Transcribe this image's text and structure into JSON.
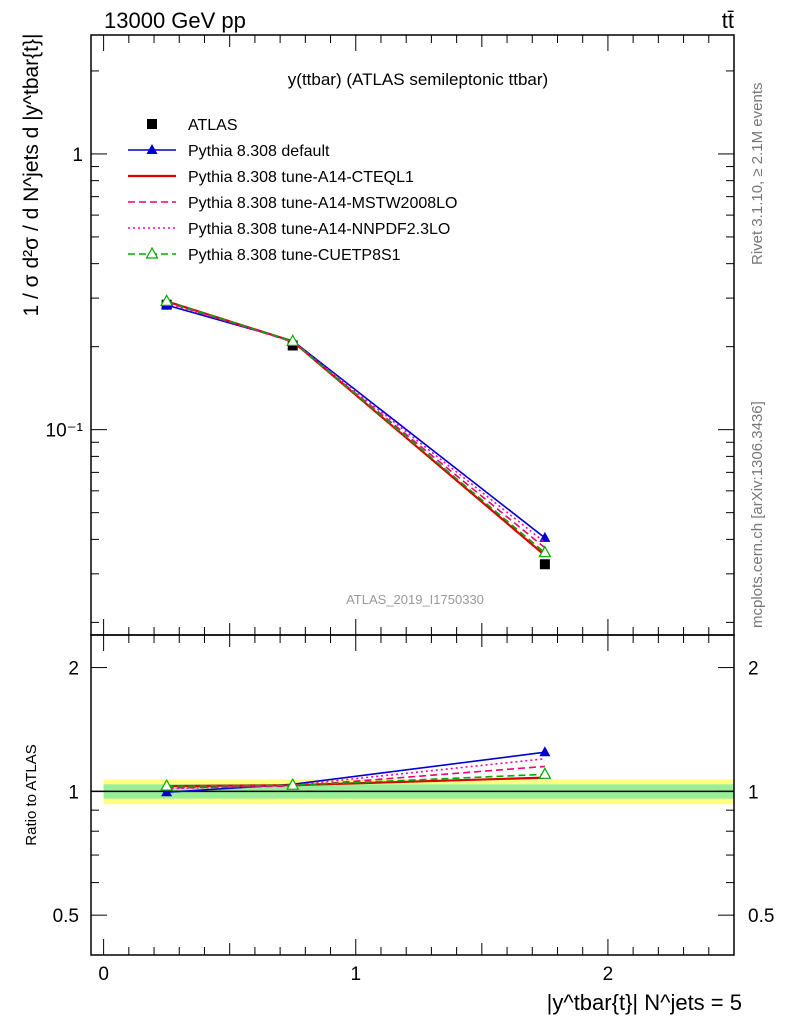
{
  "header": {
    "left": "13000 GeV pp",
    "right": "tt̄"
  },
  "side_text": {
    "rivet": "Rivet 3.1.10, ≥ 2.1M events",
    "mcplots": "mcplots.cern.ch [arXiv:1306.3436]"
  },
  "chart_data": [
    {
      "type": "line",
      "title": "y(ttbar) (ATLAS semileptonic ttbar)",
      "analysis_label": "ATLAS_2019_I1750330",
      "ylabel": "1 / σ d²σ / d N^jets d |y^tbar{t}|",
      "ylog": true,
      "ylim": [
        0.018,
        2.7
      ],
      "xlim": [
        -0.05,
        2.5
      ],
      "x": [
        0.25,
        0.75,
        1.75
      ],
      "ytick_labels": [
        "10⁻¹",
        "1"
      ],
      "ytick_values": [
        0.1,
        1
      ],
      "legend_position": "top-left",
      "series": [
        {
          "name": "ATLAS",
          "values": [
            0.284,
            0.202,
            0.0325
          ],
          "color": "#000000",
          "marker": "square",
          "dash": "none"
        },
        {
          "name": "Pythia 8.308 default",
          "values": [
            0.283,
            0.21,
            0.0405
          ],
          "color": "#0000cc",
          "marker": "triangle",
          "dash": "solid"
        },
        {
          "name": "Pythia 8.308 tune-A14-CTEQL1",
          "values": [
            0.292,
            0.209,
            0.035
          ],
          "color": "#dd0000",
          "marker": "none",
          "dash": "solid"
        },
        {
          "name": "Pythia 8.308 tune-A14-MSTW2008LO",
          "values": [
            0.29,
            0.208,
            0.0373
          ],
          "color": "#ee0077",
          "marker": "none",
          "dash": "dashed"
        },
        {
          "name": "Pythia 8.308 tune-A14-NNPDF2.3LO",
          "values": [
            0.288,
            0.209,
            0.039
          ],
          "color": "#ee00cc",
          "marker": "none",
          "dash": "dotted"
        },
        {
          "name": "Pythia 8.308 tune-CUETP8S1",
          "values": [
            0.292,
            0.209,
            0.0358
          ],
          "color": "#00aa00",
          "marker": "open-triangle",
          "dash": "dashed"
        }
      ]
    },
    {
      "type": "line",
      "ylabel": "Ratio to ATLAS",
      "xlabel": "|y^tbar{t}| N^jets = 5",
      "ylog": true,
      "ylim": [
        0.4,
        2.4
      ],
      "xlim": [
        -0.05,
        2.5
      ],
      "x": [
        0.25,
        0.75,
        1.75
      ],
      "ytick_labels": [
        "0.5",
        "1",
        "2"
      ],
      "ytick_values": [
        0.5,
        1,
        2
      ],
      "xtick_labels": [
        "0",
        "1",
        "2"
      ],
      "xtick_values": [
        0,
        1,
        2
      ],
      "band_inner": [
        0.96,
        1.04
      ],
      "band_outer": [
        0.93,
        1.07
      ],
      "band_inner_color": "#99ee99",
      "band_outer_color": "#ffff88",
      "series": [
        {
          "name": "Pythia 8.308 default",
          "values": [
            0.995,
            1.04,
            1.245
          ],
          "color": "#0000cc",
          "marker": "triangle",
          "dash": "solid"
        },
        {
          "name": "Pythia 8.308 tune-A14-CTEQL1",
          "values": [
            1.03,
            1.035,
            1.08
          ],
          "color": "#dd0000",
          "marker": "none",
          "dash": "solid"
        },
        {
          "name": "Pythia 8.308 tune-A14-MSTW2008LO",
          "values": [
            1.02,
            1.03,
            1.15
          ],
          "color": "#ee0077",
          "marker": "none",
          "dash": "dashed"
        },
        {
          "name": "Pythia 8.308 tune-A14-NNPDF2.3LO",
          "values": [
            1.015,
            1.035,
            1.2
          ],
          "color": "#ee00cc",
          "marker": "none",
          "dash": "dotted"
        },
        {
          "name": "Pythia 8.308 tune-CUETP8S1",
          "values": [
            1.03,
            1.035,
            1.1
          ],
          "color": "#00aa00",
          "marker": "open-triangle",
          "dash": "dashed"
        }
      ]
    }
  ]
}
